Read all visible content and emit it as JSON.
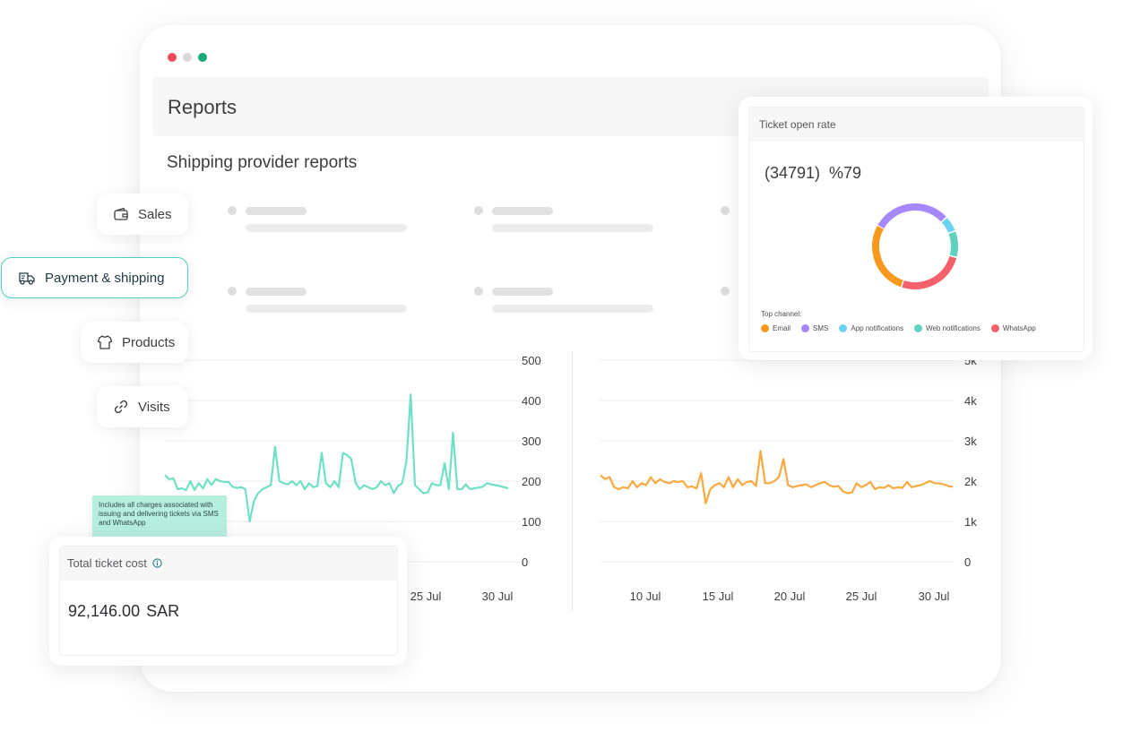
{
  "window": {
    "controls": [
      {
        "name": "close",
        "color": "#ee4b58"
      },
      {
        "name": "minimize",
        "color": "#d8d8d8"
      },
      {
        "name": "maximize",
        "color": "#19a878"
      }
    ]
  },
  "header": {
    "title": "Reports"
  },
  "section": {
    "title": "Shipping provider reports"
  },
  "nav": {
    "items": [
      {
        "label": "Sales",
        "icon": "wallet-icon",
        "active": false
      },
      {
        "label": "Payment & shipping",
        "icon": "truck-icon",
        "active": true
      },
      {
        "label": "Products",
        "icon": "shirt-icon",
        "active": false
      },
      {
        "label": "Visits",
        "icon": "link-icon",
        "active": false
      }
    ]
  },
  "chart_data": [
    {
      "type": "line",
      "color": "#6fe0c4",
      "y_ticks": [
        "500",
        "400",
        "300",
        "200",
        "100",
        "0"
      ],
      "ylim": [
        0,
        500
      ],
      "x_ticks": [
        "25 Jul",
        "30 Jul"
      ],
      "grid": true,
      "values": [
        215,
        205,
        207,
        180,
        182,
        178,
        200,
        178,
        195,
        182,
        205,
        190,
        205,
        200,
        198,
        198,
        186,
        183,
        185,
        180,
        100,
        150,
        170,
        180,
        185,
        190,
        285,
        200,
        195,
        192,
        200,
        190,
        200,
        180,
        195,
        185,
        188,
        270,
        195,
        185,
        200,
        185,
        270,
        265,
        255,
        195,
        180,
        190,
        185,
        180,
        185,
        200,
        190,
        195,
        170,
        188,
        195,
        250,
        415,
        190,
        180,
        170,
        172,
        195,
        190,
        190,
        245,
        180,
        320,
        180,
        180,
        192,
        180,
        182,
        184,
        186,
        195,
        192,
        190,
        188,
        185,
        182
      ]
    },
    {
      "type": "line",
      "color": "#f9a93f",
      "y_ticks": [
        "5k",
        "4k",
        "3k",
        "2k",
        "1k",
        "0"
      ],
      "ylim": [
        0,
        5000
      ],
      "x_ticks": [
        "10 Jul",
        "15 Jul",
        "20 Jul",
        "25 Jul",
        "30 Jul"
      ],
      "grid": true,
      "values": [
        2150,
        2050,
        2100,
        1850,
        1800,
        1850,
        1820,
        2000,
        1850,
        1950,
        1900,
        2100,
        1950,
        2050,
        1980,
        1950,
        2000,
        1980,
        2000,
        1850,
        1870,
        1820,
        2200,
        1450,
        1800,
        1900,
        1950,
        1850,
        2100,
        1850,
        2050,
        1900,
        1980,
        2000,
        1880,
        2750,
        1950,
        1950,
        2000,
        2100,
        2550,
        1900,
        1850,
        1880,
        1900,
        1920,
        1850,
        1900,
        1950,
        1980,
        1900,
        1860,
        1880,
        1750,
        1700,
        1720,
        1950,
        1850,
        1900,
        1980,
        1800,
        1850,
        1830,
        1900,
        1820,
        1850,
        1830,
        1980,
        1850,
        1880,
        1900,
        1950,
        2000,
        1950,
        1940,
        1920,
        1880,
        1860
      ]
    }
  ],
  "ticket_open_rate": {
    "title": "Ticket open rate",
    "value": "(34791)  %79",
    "legend_title": "Top channel:",
    "donut": [
      {
        "label": "Email",
        "value": 28,
        "color": "#f8991d"
      },
      {
        "label": "SMS",
        "value": 30,
        "color": "#a788fb"
      },
      {
        "label": "App notifications",
        "value": 6,
        "color": "#6dd3f2"
      },
      {
        "label": "Web notifications",
        "value": 10,
        "color": "#5fd1bd"
      },
      {
        "label": "WhatsApp",
        "value": 26,
        "color": "#f5616a"
      }
    ]
  },
  "ticket_cost": {
    "title": "Total ticket cost",
    "info_icon": "info-icon",
    "value": "92,146.00",
    "currency": "SAR",
    "tooltip": "Includes all charges associated with issuing and delivering tickets via SMS and WhatsApp"
  }
}
